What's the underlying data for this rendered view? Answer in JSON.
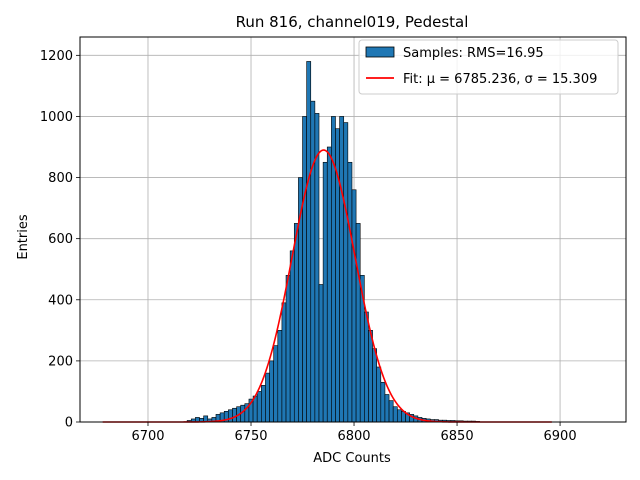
{
  "chart_data": {
    "type": "bar",
    "title": "Run 816, channel019, Pedestal",
    "xlabel": "ADC Counts",
    "ylabel": "Entries",
    "xlim": [
      6667,
      6932
    ],
    "ylim": [
      0,
      1260
    ],
    "x_ticks": [
      6700,
      6750,
      6800,
      6850,
      6900
    ],
    "y_ticks": [
      0,
      200,
      400,
      600,
      800,
      1000,
      1200
    ],
    "grid": true,
    "legend_position": "top-right",
    "colors": {
      "bars": "#1f77b4",
      "bar_edge": "#000000",
      "fit": "#ff0000",
      "grid": "#b0b0b0"
    },
    "histogram": {
      "name": "Samples: RMS=16.95",
      "x": [
        6720,
        6722,
        6724,
        6726,
        6728,
        6730,
        6732,
        6734,
        6736,
        6738,
        6740,
        6742,
        6744,
        6746,
        6748,
        6750,
        6752,
        6754,
        6756,
        6758,
        6760,
        6762,
        6764,
        6766,
        6768,
        6770,
        6772,
        6774,
        6776,
        6778,
        6780,
        6782,
        6784,
        6786,
        6788,
        6790,
        6792,
        6794,
        6796,
        6798,
        6800,
        6802,
        6804,
        6806,
        6808,
        6810,
        6812,
        6814,
        6816,
        6818,
        6820,
        6822,
        6824,
        6826,
        6828,
        6830,
        6832,
        6834,
        6836,
        6838,
        6840,
        6842,
        6844,
        6846,
        6848,
        6850,
        6852,
        6854,
        6856,
        6858,
        6860
      ],
      "values": [
        5,
        10,
        15,
        12,
        20,
        10,
        15,
        25,
        30,
        35,
        40,
        45,
        50,
        55,
        60,
        75,
        85,
        100,
        120,
        160,
        200,
        250,
        300,
        390,
        480,
        560,
        650,
        800,
        1000,
        1180,
        1050,
        1010,
        450,
        850,
        900,
        1000,
        960,
        1000,
        980,
        850,
        760,
        650,
        480,
        360,
        300,
        240,
        180,
        130,
        90,
        70,
        50,
        40,
        35,
        30,
        25,
        20,
        15,
        12,
        10,
        8,
        8,
        6,
        6,
        5,
        5,
        4,
        4,
        3,
        3,
        3,
        2
      ]
    },
    "fit": {
      "name": "Fit: μ = 6785.236, σ = 15.309",
      "mu": 6785.236,
      "sigma": 15.309,
      "amplitude": 890,
      "x_range": [
        6678,
        6896
      ]
    }
  }
}
